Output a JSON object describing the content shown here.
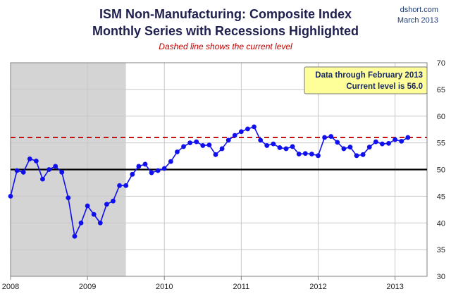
{
  "header": {
    "title_line1": "ISM Non-Manufacturing: Composite Index",
    "title_line2": "Monthly Series with Recessions Highlighted",
    "subtitle": "Dashed line shows the current level",
    "credit_site": "dshort.com",
    "credit_date": "March 2013"
  },
  "annotation": {
    "line1": "Data through February 2013",
    "line2": "Current level is 56.0"
  },
  "colors": {
    "series": "#1010ee",
    "current_level_line": "#cc0000",
    "baseline": "#000000",
    "recession": "#d4d4d4",
    "grid": "#c8c8c8",
    "annotation_bg": "#ffff99"
  },
  "chart_data": {
    "type": "line",
    "title": "ISM Non-Manufacturing: Composite Index — Monthly Series with Recessions Highlighted",
    "x_start": "2008-01",
    "xlim": [
      2008.0,
      2013.416
    ],
    "ylim": [
      30,
      70
    ],
    "y_ticks": [
      30,
      35,
      40,
      45,
      50,
      55,
      60,
      65,
      70
    ],
    "x_ticks": [
      2008,
      2009,
      2010,
      2011,
      2012,
      2013
    ],
    "y_axis_side": "right",
    "grid": true,
    "reference_lines": [
      {
        "name": "current level",
        "value": 56.0,
        "style": "dashed"
      },
      {
        "name": "expansion threshold",
        "value": 50,
        "style": "solid"
      }
    ],
    "recessions": [
      {
        "start": 2008.0,
        "end": 2009.5
      }
    ],
    "series": [
      {
        "name": "ISM Non-Manufacturing Composite Index",
        "values": [
          45.0,
          49.8,
          49.5,
          52.0,
          51.6,
          48.2,
          50.0,
          50.6,
          49.5,
          44.7,
          37.5,
          40.0,
          43.2,
          41.6,
          40.0,
          43.5,
          44.1,
          47.0,
          47.0,
          49.1,
          50.6,
          51.0,
          49.4,
          49.8,
          50.2,
          51.5,
          53.3,
          54.3,
          55.0,
          55.2,
          54.5,
          54.6,
          52.8,
          53.9,
          55.5,
          56.4,
          57.1,
          57.6,
          58.0,
          55.5,
          54.5,
          54.8,
          54.1,
          53.9,
          54.3,
          52.9,
          53.0,
          52.9,
          52.6,
          56.0,
          56.2,
          55.1,
          53.9,
          54.2,
          52.6,
          52.8,
          54.2,
          55.2,
          54.8,
          54.9,
          55.6,
          55.3,
          56.0
        ]
      }
    ]
  }
}
